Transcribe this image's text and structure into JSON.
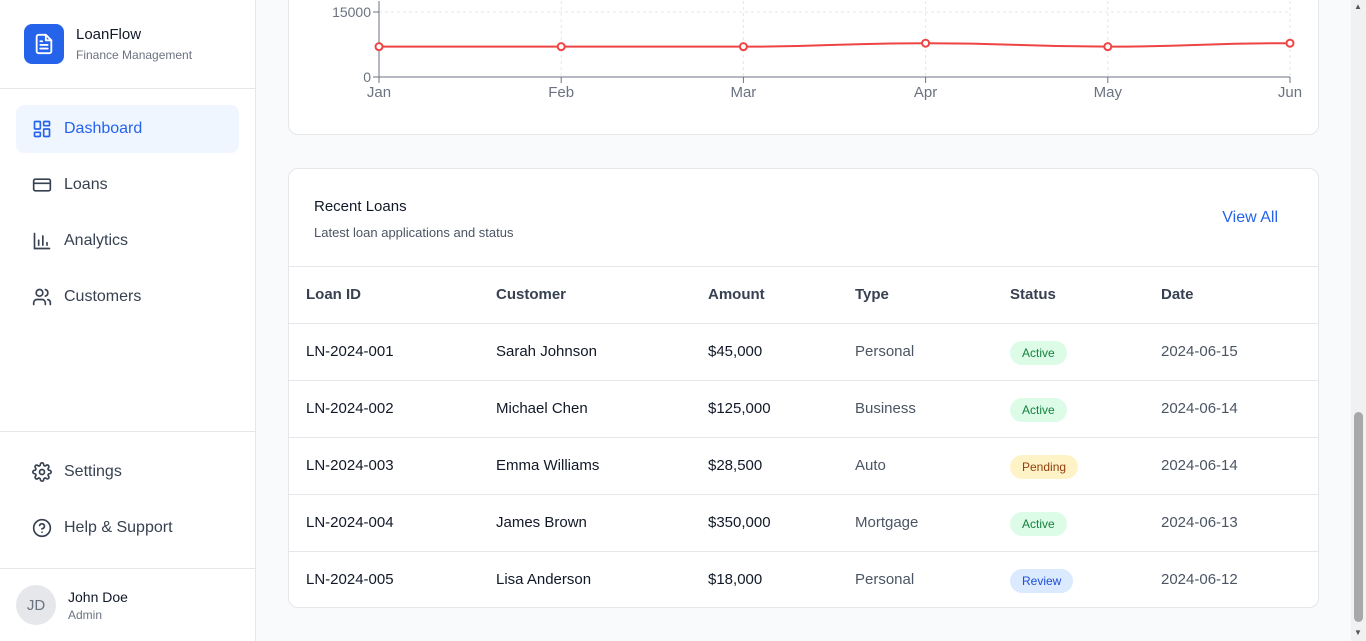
{
  "brand": {
    "name": "LoanFlow",
    "subtitle": "Finance Management"
  },
  "nav": {
    "items": [
      {
        "label": "Dashboard",
        "icon": "dashboard-icon",
        "active": true
      },
      {
        "label": "Loans",
        "icon": "card-icon"
      },
      {
        "label": "Analytics",
        "icon": "bar-chart-icon"
      },
      {
        "label": "Customers",
        "icon": "users-icon"
      }
    ],
    "bottom": [
      {
        "label": "Settings",
        "icon": "gear-icon"
      },
      {
        "label": "Help & Support",
        "icon": "help-icon"
      }
    ]
  },
  "user": {
    "initials": "JD",
    "name": "John Doe",
    "role": "Admin"
  },
  "chart_data": {
    "type": "line",
    "x": [
      "Jan",
      "Feb",
      "Mar",
      "Apr",
      "May",
      "Jun"
    ],
    "series": [
      {
        "values": [
          7000,
          7000,
          7000,
          7800,
          7000,
          7800
        ],
        "color": "#ef4444"
      }
    ],
    "y_ticks": [
      "0",
      "15000"
    ],
    "ylim": [
      0,
      15000
    ],
    "grid": true
  },
  "recent_loans": {
    "title": "Recent Loans",
    "subtitle": "Latest loan applications and status",
    "view_all": "View All",
    "columns": [
      "Loan ID",
      "Customer",
      "Amount",
      "Type",
      "Status",
      "Date"
    ],
    "rows": [
      {
        "id": "LN-2024-001",
        "customer": "Sarah Johnson",
        "amount": "$45,000",
        "type": "Personal",
        "status": "Active",
        "date": "2024-06-15"
      },
      {
        "id": "LN-2024-002",
        "customer": "Michael Chen",
        "amount": "$125,000",
        "type": "Business",
        "status": "Active",
        "date": "2024-06-14"
      },
      {
        "id": "LN-2024-003",
        "customer": "Emma Williams",
        "amount": "$28,500",
        "type": "Auto",
        "status": "Pending",
        "date": "2024-06-14"
      },
      {
        "id": "LN-2024-004",
        "customer": "James Brown",
        "amount": "$350,000",
        "type": "Mortgage",
        "status": "Active",
        "date": "2024-06-13"
      },
      {
        "id": "LN-2024-005",
        "customer": "Lisa Anderson",
        "amount": "$18,000",
        "type": "Personal",
        "status": "Review",
        "date": "2024-06-12"
      }
    ]
  },
  "colors": {
    "accent": "#2563eb",
    "active_bg": "#dcfce7",
    "pending_bg": "#fef3c7",
    "review_bg": "#dbeafe"
  }
}
